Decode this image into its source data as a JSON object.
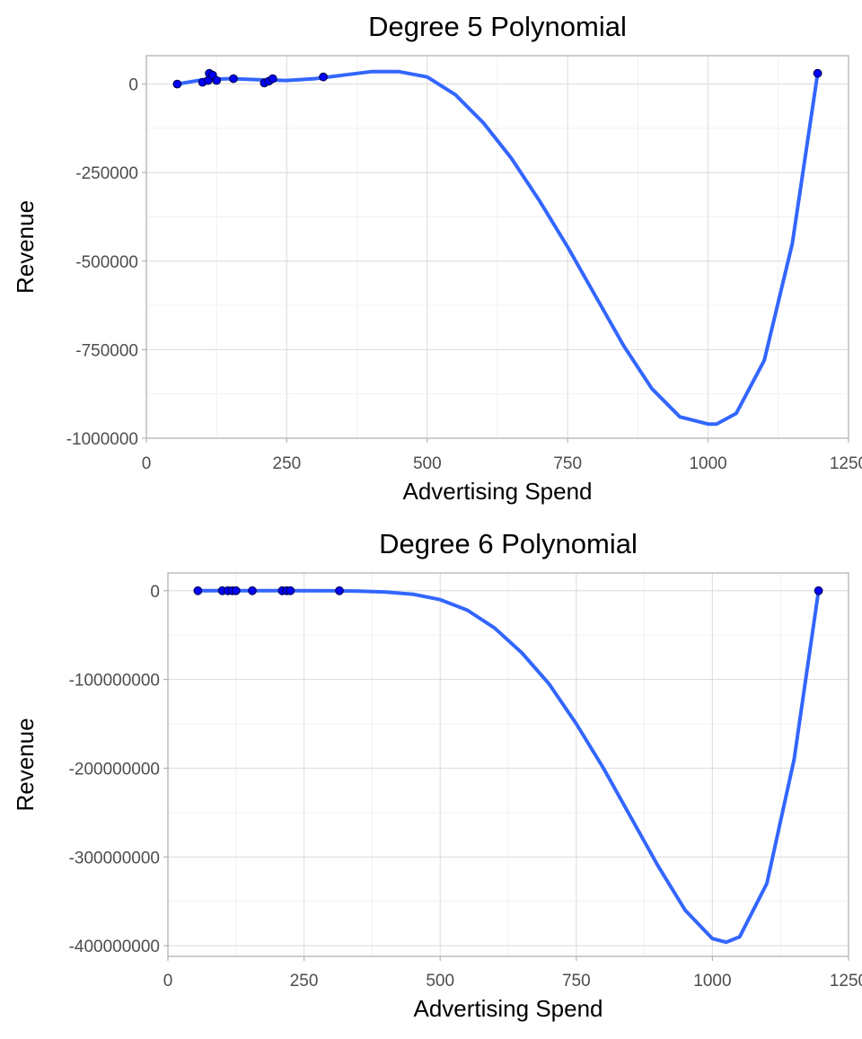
{
  "chart_data": [
    {
      "type": "line",
      "title": "Degree 5 Polynomial",
      "xlabel": "Advertising Spend",
      "ylabel": "Revenue",
      "xlim": [
        0,
        1250
      ],
      "ylim": [
        -1000000,
        80000
      ],
      "x_ticks": [
        0,
        250,
        500,
        750,
        1000,
        1250
      ],
      "x_tick_labels": [
        "0",
        "250",
        "500",
        "750",
        "1000",
        "1250"
      ],
      "y_ticks": [
        0,
        -250000,
        -500000,
        -750000,
        -1000000
      ],
      "y_tick_labels": [
        "0",
        "-250000",
        "-500000",
        "-750000",
        "-1000000"
      ],
      "grid": true,
      "points": {
        "x": [
          55,
          100,
          110,
          112,
          118,
          125,
          155,
          210,
          218,
          225,
          315,
          1195
        ],
        "y": [
          0,
          5000,
          10000,
          30000,
          25000,
          10000,
          15000,
          3000,
          8000,
          15000,
          20000,
          30000
        ]
      },
      "fit": {
        "x": [
          55,
          100,
          150,
          200,
          250,
          300,
          350,
          400,
          450,
          500,
          550,
          600,
          650,
          700,
          750,
          800,
          850,
          900,
          950,
          1000,
          1015,
          1050,
          1100,
          1150,
          1195
        ],
        "y": [
          0,
          12000,
          15000,
          12000,
          10000,
          15000,
          25000,
          35000,
          35000,
          20000,
          -30000,
          -110000,
          -210000,
          -330000,
          -460000,
          -600000,
          -740000,
          -860000,
          -940000,
          -960000,
          -960000,
          -930000,
          -780000,
          -450000,
          30000
        ]
      }
    },
    {
      "type": "line",
      "title": "Degree 6 Polynomial",
      "xlabel": "Advertising Spend",
      "ylabel": "Revenue",
      "xlim": [
        0,
        1250
      ],
      "ylim": [
        -412000000,
        20000000
      ],
      "x_ticks": [
        0,
        250,
        500,
        750,
        1000,
        1250
      ],
      "x_tick_labels": [
        "0",
        "250",
        "500",
        "750",
        "1000",
        "1250"
      ],
      "y_ticks": [
        0,
        -100000000,
        -200000000,
        -300000000,
        -400000000
      ],
      "y_tick_labels": [
        "0",
        "-100000000",
        "-200000000",
        "-300000000",
        "-400000000"
      ],
      "grid": true,
      "points": {
        "x": [
          55,
          100,
          110,
          118,
          125,
          155,
          210,
          218,
          225,
          315,
          1195
        ],
        "y": [
          0,
          0,
          0,
          0,
          0,
          0,
          0,
          0,
          0,
          0,
          0
        ]
      },
      "fit": {
        "x": [
          55,
          100,
          200,
          300,
          350,
          400,
          450,
          500,
          550,
          600,
          650,
          700,
          750,
          800,
          850,
          900,
          950,
          1000,
          1025,
          1050,
          1100,
          1150,
          1195
        ],
        "y": [
          0,
          0,
          0,
          -100000,
          -500000,
          -1500000,
          -4000000,
          -10000000,
          -22000000,
          -42000000,
          -70000000,
          -105000000,
          -150000000,
          -200000000,
          -255000000,
          -310000000,
          -360000000,
          -392000000,
          -396000000,
          -390000000,
          -330000000,
          -190000000,
          0
        ]
      }
    }
  ]
}
